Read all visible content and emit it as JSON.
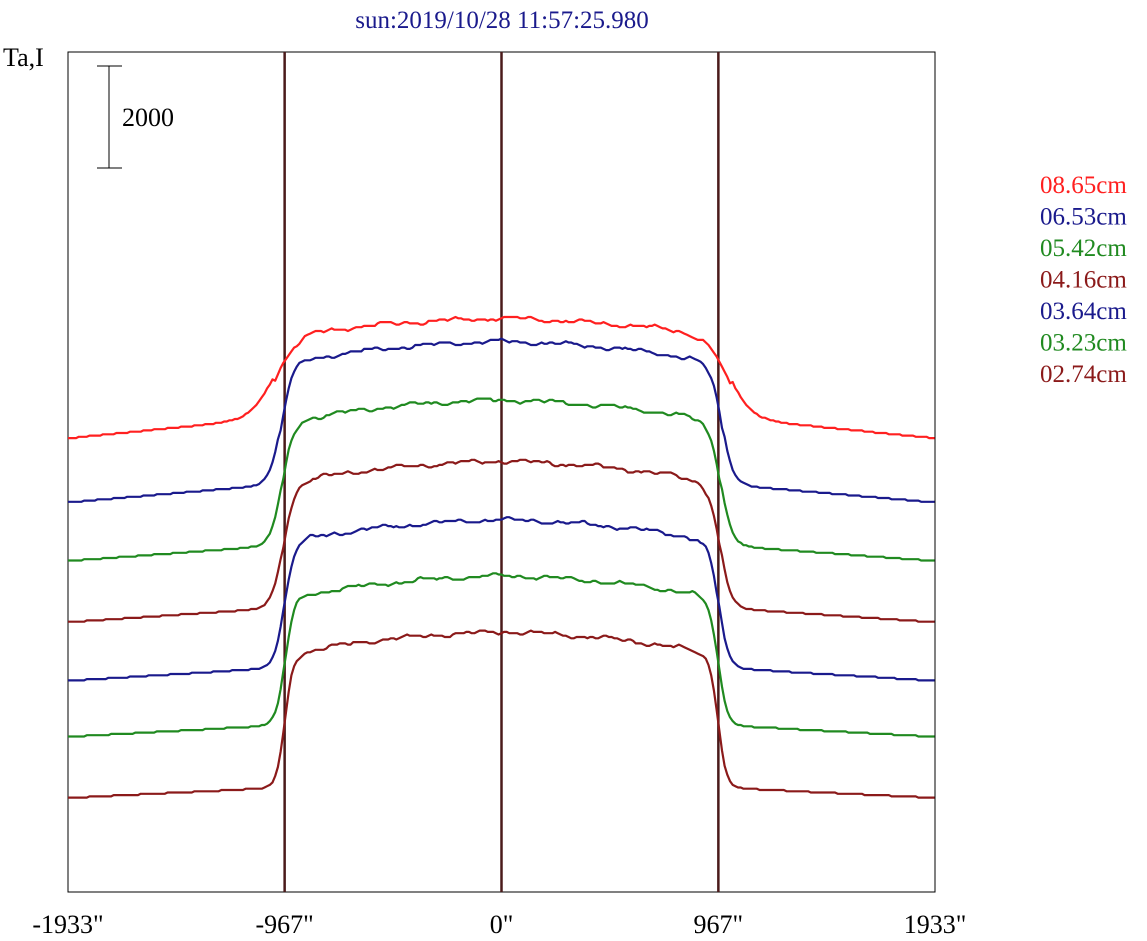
{
  "chart_data": {
    "type": "line",
    "title": "sun:2019/10/28 11:57:25.980",
    "ylabel": "Ta,I",
    "xlim": [
      -1933,
      1933
    ],
    "x_ticks": [
      "-1933\"",
      "-967\"",
      "0\"",
      "967\"",
      "1933\""
    ],
    "x_tick_values": [
      -1933,
      -967,
      0,
      967,
      1933
    ],
    "scale_bar": {
      "label": "2000",
      "value": 2000
    },
    "limb_lines": [
      -967,
      0,
      967
    ],
    "grid": false,
    "legend_position": "right",
    "series_offset_step": 1200,
    "series": [
      {
        "name": "08.65cm",
        "color": "#ff2020",
        "baseline": 8.9,
        "plateau": 11.0,
        "edge": 1020,
        "width": 50,
        "peak_offset": 0.55
      },
      {
        "name": "06.53cm",
        "color": "#1a1a8c",
        "baseline": 7.65,
        "plateau": 10.55,
        "edge": 985,
        "width": 25,
        "peak_offset": 0.45
      },
      {
        "name": "05.42cm",
        "color": "#208a20",
        "baseline": 6.5,
        "plateau": 9.4,
        "edge": 980,
        "width": 25,
        "peak_offset": 0.35
      },
      {
        "name": "04.16cm",
        "color": "#8b1a1a",
        "baseline": 5.3,
        "plateau": 8.2,
        "edge": 975,
        "width": 25,
        "peak_offset": 0.3
      },
      {
        "name": "03.64cm",
        "color": "#1a1a8c",
        "baseline": 4.15,
        "plateau": 7.05,
        "edge": 970,
        "width": 22,
        "peak_offset": 0.25
      },
      {
        "name": "03.23cm",
        "color": "#208a20",
        "baseline": 3.05,
        "plateau": 5.95,
        "edge": 967,
        "width": 20,
        "peak_offset": 0.2
      },
      {
        "name": "02.74cm",
        "color": "#8b1a1a",
        "baseline": 1.85,
        "plateau": 4.85,
        "edge": 967,
        "width": 18,
        "peak_offset": 0.15
      }
    ]
  }
}
